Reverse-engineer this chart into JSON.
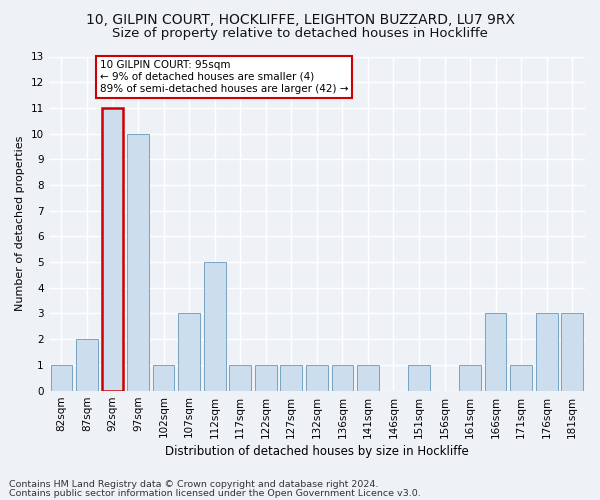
{
  "title1": "10, GILPIN COURT, HOCKLIFFE, LEIGHTON BUZZARD, LU7 9RX",
  "title2": "Size of property relative to detached houses in Hockliffe",
  "xlabel": "Distribution of detached houses by size in Hockliffe",
  "ylabel": "Number of detached properties",
  "footer1": "Contains HM Land Registry data © Crown copyright and database right 2024.",
  "footer2": "Contains public sector information licensed under the Open Government Licence v3.0.",
  "annotation_title": "10 GILPIN COURT: 95sqm",
  "annotation_line2": "← 9% of detached houses are smaller (4)",
  "annotation_line3": "89% of semi-detached houses are larger (42) →",
  "categories": [
    "82sqm",
    "87sqm",
    "92sqm",
    "97sqm",
    "102sqm",
    "107sqm",
    "112sqm",
    "117sqm",
    "122sqm",
    "127sqm",
    "132sqm",
    "136sqm",
    "141sqm",
    "146sqm",
    "151sqm",
    "156sqm",
    "161sqm",
    "166sqm",
    "171sqm",
    "176sqm",
    "181sqm"
  ],
  "values": [
    1,
    2,
    11,
    10,
    1,
    3,
    5,
    1,
    1,
    1,
    1,
    1,
    1,
    0,
    1,
    0,
    1,
    3,
    1,
    3,
    3
  ],
  "bar_color": "#ccdded",
  "bar_edge_color": "#6699bb",
  "highlight_bar_index": 2,
  "highlight_edge_color": "#cc0000",
  "annotation_box_color": "#ffffff",
  "annotation_box_edge": "#cc0000",
  "background_color": "#eef2f7",
  "grid_color": "#ffffff",
  "ylim": [
    0,
    13
  ],
  "yticks": [
    0,
    1,
    2,
    3,
    4,
    5,
    6,
    7,
    8,
    9,
    10,
    11,
    12,
    13
  ],
  "title1_fontsize": 10,
  "title2_fontsize": 9.5,
  "xlabel_fontsize": 8.5,
  "ylabel_fontsize": 8,
  "tick_fontsize": 7.5,
  "footer_fontsize": 6.8,
  "annotation_fontsize": 7.5
}
